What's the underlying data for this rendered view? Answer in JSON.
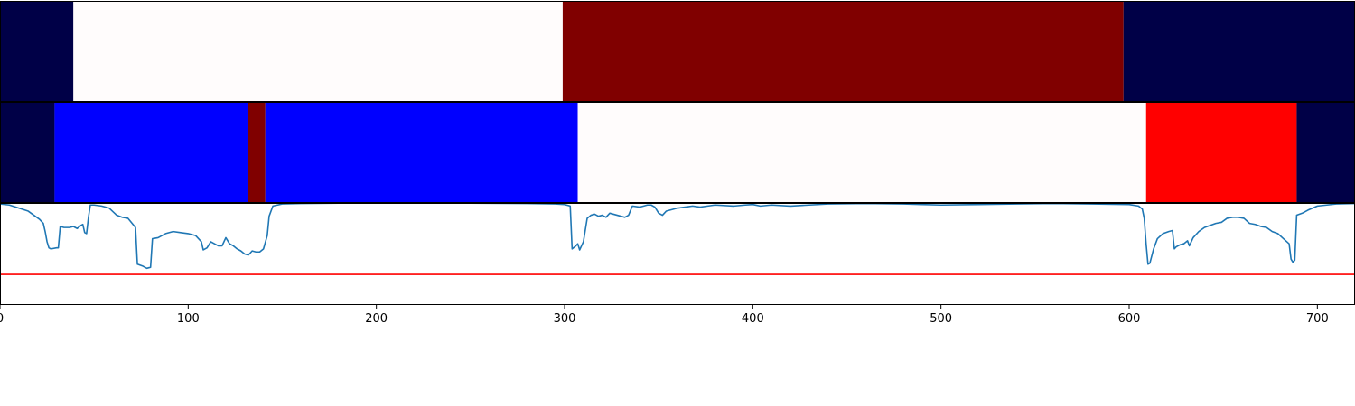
{
  "chart_data": [
    {
      "type": "heatmap",
      "xlim": [
        0,
        720
      ],
      "segments": [
        {
          "start": 0,
          "end": 39,
          "color": "#000047"
        },
        {
          "start": 39,
          "end": 299,
          "color": "#fffcfc"
        },
        {
          "start": 299,
          "end": 597,
          "color": "#800000"
        },
        {
          "start": 597,
          "end": 720,
          "color": "#000047"
        }
      ]
    },
    {
      "type": "heatmap",
      "xlim": [
        0,
        720
      ],
      "segments": [
        {
          "start": 0,
          "end": 29,
          "color": "#000047"
        },
        {
          "start": 29,
          "end": 132,
          "color": "#0000ff"
        },
        {
          "start": 132,
          "end": 141,
          "color": "#800000"
        },
        {
          "start": 141,
          "end": 307,
          "color": "#0000ff"
        },
        {
          "start": 307,
          "end": 609,
          "color": "#fffcfc"
        },
        {
          "start": 609,
          "end": 689,
          "color": "#ff0000"
        },
        {
          "start": 689,
          "end": 720,
          "color": "#000047"
        }
      ]
    },
    {
      "type": "line",
      "xlim": [
        0,
        720
      ],
      "ylim": [
        0,
        1
      ],
      "xticks": [
        0,
        100,
        200,
        300,
        400,
        500,
        600,
        700
      ],
      "tick_labels": [
        "0",
        "100",
        "200",
        "300",
        "400",
        "500",
        "600",
        "700"
      ],
      "threshold": {
        "y": 0.3,
        "color": "#ff0000"
      },
      "series": [
        {
          "color": "#1f77b4",
          "points": [
            [
              0,
              0.99
            ],
            [
              5,
              0.98
            ],
            [
              10,
              0.95
            ],
            [
              15,
              0.92
            ],
            [
              18,
              0.88
            ],
            [
              21,
              0.84
            ],
            [
              23,
              0.8
            ],
            [
              24,
              0.72
            ],
            [
              25,
              0.62
            ],
            [
              26,
              0.56
            ],
            [
              27,
              0.55
            ],
            [
              30,
              0.56
            ],
            [
              31,
              0.56
            ],
            [
              32,
              0.77
            ],
            [
              34,
              0.76
            ],
            [
              37,
              0.76
            ],
            [
              39,
              0.77
            ],
            [
              41,
              0.75
            ],
            [
              43,
              0.78
            ],
            [
              44,
              0.79
            ],
            [
              45,
              0.71
            ],
            [
              46,
              0.7
            ],
            [
              47,
              0.86
            ],
            [
              48,
              0.98
            ],
            [
              50,
              0.98
            ],
            [
              54,
              0.97
            ],
            [
              58,
              0.95
            ],
            [
              62,
              0.88
            ],
            [
              65,
              0.86
            ],
            [
              68,
              0.85
            ],
            [
              72,
              0.76
            ],
            [
              73,
              0.4
            ],
            [
              76,
              0.38
            ],
            [
              78,
              0.36
            ],
            [
              80,
              0.37
            ],
            [
              81,
              0.65
            ],
            [
              84,
              0.66
            ],
            [
              88,
              0.7
            ],
            [
              92,
              0.72
            ],
            [
              96,
              0.71
            ],
            [
              100,
              0.7
            ],
            [
              104,
              0.68
            ],
            [
              107,
              0.62
            ],
            [
              108,
              0.54
            ],
            [
              110,
              0.56
            ],
            [
              112,
              0.62
            ],
            [
              114,
              0.6
            ],
            [
              116,
              0.58
            ],
            [
              118,
              0.58
            ],
            [
              120,
              0.66
            ],
            [
              122,
              0.6
            ],
            [
              124,
              0.58
            ],
            [
              126,
              0.55
            ],
            [
              128,
              0.53
            ],
            [
              130,
              0.5
            ],
            [
              132,
              0.49
            ],
            [
              134,
              0.53
            ],
            [
              136,
              0.52
            ],
            [
              138,
              0.52
            ],
            [
              140,
              0.55
            ],
            [
              142,
              0.68
            ],
            [
              143,
              0.87
            ],
            [
              145,
              0.97
            ],
            [
              150,
              0.99
            ],
            [
              160,
              0.995
            ],
            [
              180,
              0.998
            ],
            [
              200,
              0.998
            ],
            [
              250,
              0.998
            ],
            [
              280,
              0.995
            ],
            [
              295,
              0.99
            ],
            [
              300,
              0.985
            ],
            [
              303,
              0.97
            ],
            [
              304,
              0.55
            ],
            [
              306,
              0.58
            ],
            [
              307,
              0.6
            ],
            [
              308,
              0.54
            ],
            [
              310,
              0.62
            ],
            [
              312,
              0.85
            ],
            [
              314,
              0.88
            ],
            [
              316,
              0.89
            ],
            [
              318,
              0.87
            ],
            [
              320,
              0.88
            ],
            [
              322,
              0.86
            ],
            [
              324,
              0.9
            ],
            [
              326,
              0.89
            ],
            [
              328,
              0.88
            ],
            [
              330,
              0.87
            ],
            [
              332,
              0.86
            ],
            [
              334,
              0.88
            ],
            [
              336,
              0.97
            ],
            [
              340,
              0.96
            ],
            [
              344,
              0.98
            ],
            [
              346,
              0.98
            ],
            [
              348,
              0.96
            ],
            [
              350,
              0.9
            ],
            [
              352,
              0.88
            ],
            [
              354,
              0.92
            ],
            [
              356,
              0.93
            ],
            [
              360,
              0.95
            ],
            [
              364,
              0.96
            ],
            [
              368,
              0.97
            ],
            [
              372,
              0.96
            ],
            [
              376,
              0.97
            ],
            [
              380,
              0.98
            ],
            [
              390,
              0.97
            ],
            [
              396,
              0.98
            ],
            [
              400,
              0.985
            ],
            [
              404,
              0.97
            ],
            [
              410,
              0.98
            ],
            [
              420,
              0.97
            ],
            [
              430,
              0.98
            ],
            [
              440,
              0.99
            ],
            [
              460,
              0.995
            ],
            [
              480,
              0.99
            ],
            [
              500,
              0.98
            ],
            [
              520,
              0.985
            ],
            [
              540,
              0.99
            ],
            [
              560,
              0.995
            ],
            [
              580,
              0.99
            ],
            [
              600,
              0.985
            ],
            [
              605,
              0.97
            ],
            [
              607,
              0.94
            ],
            [
              608,
              0.85
            ],
            [
              609,
              0.6
            ],
            [
              610,
              0.4
            ],
            [
              611,
              0.41
            ],
            [
              613,
              0.55
            ],
            [
              615,
              0.65
            ],
            [
              618,
              0.7
            ],
            [
              621,
              0.72
            ],
            [
              623,
              0.73
            ],
            [
              624,
              0.55
            ],
            [
              625,
              0.57
            ],
            [
              627,
              0.59
            ],
            [
              629,
              0.6
            ],
            [
              631,
              0.63
            ],
            [
              632,
              0.58
            ],
            [
              634,
              0.66
            ],
            [
              637,
              0.72
            ],
            [
              640,
              0.76
            ],
            [
              643,
              0.78
            ],
            [
              646,
              0.8
            ],
            [
              649,
              0.81
            ],
            [
              652,
              0.85
            ],
            [
              655,
              0.86
            ],
            [
              658,
              0.86
            ],
            [
              661,
              0.85
            ],
            [
              664,
              0.8
            ],
            [
              667,
              0.79
            ],
            [
              670,
              0.77
            ],
            [
              673,
              0.76
            ],
            [
              676,
              0.72
            ],
            [
              679,
              0.7
            ],
            [
              682,
              0.65
            ],
            [
              685,
              0.6
            ],
            [
              686,
              0.45
            ],
            [
              687,
              0.42
            ],
            [
              688,
              0.44
            ],
            [
              689,
              0.88
            ],
            [
              692,
              0.9
            ],
            [
              695,
              0.93
            ],
            [
              700,
              0.97
            ],
            [
              710,
              0.99
            ],
            [
              720,
              0.995
            ]
          ]
        }
      ]
    }
  ]
}
